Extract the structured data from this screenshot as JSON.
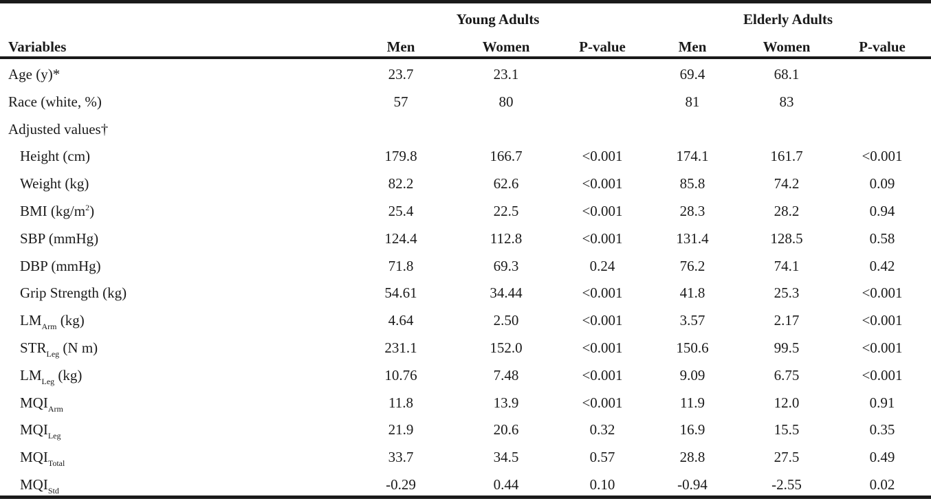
{
  "groups": {
    "young": "Young Adults",
    "elderly": "Elderly Adults"
  },
  "columns": {
    "variables": "Variables",
    "men": "Men",
    "women": "Women",
    "pvalue": "P-value"
  },
  "rows": [
    {
      "base": "Age (y)*",
      "sub": "",
      "sup": "",
      "tail": "",
      "indent": false,
      "values": [
        "23.7",
        "23.1",
        "",
        "69.4",
        "68.1",
        ""
      ]
    },
    {
      "base": "Race (white, %)",
      "sub": "",
      "sup": "",
      "tail": "",
      "indent": false,
      "values": [
        "57",
        "80",
        "",
        "81",
        "83",
        ""
      ]
    },
    {
      "base": "Adjusted values†",
      "sub": "",
      "sup": "",
      "tail": "",
      "indent": false,
      "values": [
        "",
        "",
        "",
        "",
        "",
        ""
      ]
    },
    {
      "base": "Height (cm)",
      "sub": "",
      "sup": "",
      "tail": "",
      "indent": true,
      "values": [
        "179.8",
        "166.7",
        "<0.001",
        "174.1",
        "161.7",
        "<0.001"
      ]
    },
    {
      "base": "Weight (kg)",
      "sub": "",
      "sup": "",
      "tail": "",
      "indent": true,
      "values": [
        "82.2",
        "62.6",
        "<0.001",
        "85.8",
        "74.2",
        "0.09"
      ]
    },
    {
      "base": "BMI (kg/m",
      "sub": "",
      "sup": "2",
      "tail": ")",
      "indent": true,
      "values": [
        "25.4",
        "22.5",
        "<0.001",
        "28.3",
        "28.2",
        "0.94"
      ]
    },
    {
      "base": "SBP (mmHg)",
      "sub": "",
      "sup": "",
      "tail": "",
      "indent": true,
      "values": [
        "124.4",
        "112.8",
        "<0.001",
        "131.4",
        "128.5",
        "0.58"
      ]
    },
    {
      "base": "DBP (mmHg)",
      "sub": "",
      "sup": "",
      "tail": "",
      "indent": true,
      "values": [
        "71.8",
        "69.3",
        "0.24",
        "76.2",
        "74.1",
        "0.42"
      ]
    },
    {
      "base": "Grip Strength (kg)",
      "sub": "",
      "sup": "",
      "tail": "",
      "indent": true,
      "values": [
        "54.61",
        "34.44",
        "<0.001",
        "41.8",
        "25.3",
        "<0.001"
      ]
    },
    {
      "base": "LM",
      "sub": "Arm",
      "sup": "",
      "tail": " (kg)",
      "indent": true,
      "values": [
        "4.64",
        "2.50",
        "<0.001",
        "3.57",
        "2.17",
        "<0.001"
      ]
    },
    {
      "base": "STR",
      "sub": "Leg",
      "sup": "",
      "tail": " (N m)",
      "indent": true,
      "values": [
        "231.1",
        "152.0",
        "<0.001",
        "150.6",
        "99.5",
        "<0.001"
      ]
    },
    {
      "base": "LM",
      "sub": "Leg",
      "sup": "",
      "tail": " (kg)",
      "indent": true,
      "values": [
        "10.76",
        "7.48",
        "<0.001",
        "9.09",
        "6.75",
        "<0.001"
      ]
    },
    {
      "base": "MQI",
      "sub": "Arm",
      "sup": "",
      "tail": "",
      "indent": true,
      "values": [
        "11.8",
        "13.9",
        "<0.001",
        "11.9",
        "12.0",
        "0.91"
      ]
    },
    {
      "base": "MQI",
      "sub": "Leg",
      "sup": "",
      "tail": "",
      "indent": true,
      "values": [
        "21.9",
        "20.6",
        "0.32",
        "16.9",
        "15.5",
        "0.35"
      ]
    },
    {
      "base": "MQI",
      "sub": "Total",
      "sup": "",
      "tail": "",
      "indent": true,
      "values": [
        "33.7",
        "34.5",
        "0.57",
        "28.8",
        "27.5",
        "0.49"
      ]
    },
    {
      "base": "MQI",
      "sub": "Std",
      "sup": "",
      "tail": "",
      "indent": true,
      "values": [
        "-0.29",
        "0.44",
        "0.10",
        "-0.94",
        "-2.55",
        "0.02"
      ]
    }
  ]
}
